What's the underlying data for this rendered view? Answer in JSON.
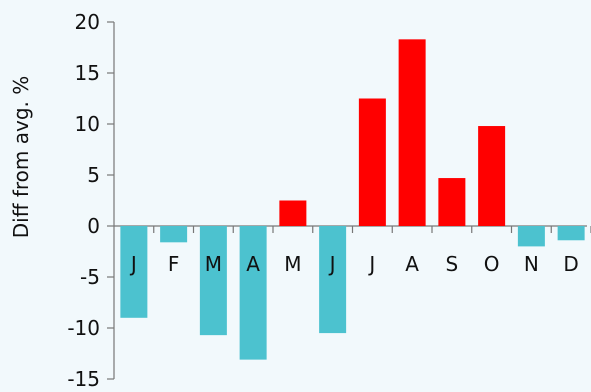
{
  "chart_data": {
    "type": "bar",
    "title": "",
    "xlabel": "",
    "ylabel": "Diff from avg. %",
    "categories": [
      "J",
      "F",
      "M",
      "A",
      "M",
      "J",
      "J",
      "A",
      "S",
      "O",
      "N",
      "D"
    ],
    "values": [
      -9.0,
      -1.6,
      -10.7,
      -13.1,
      2.5,
      -10.5,
      12.5,
      18.3,
      4.7,
      9.8,
      -2.0,
      -1.4
    ],
    "ylim": [
      -15,
      20
    ],
    "yticks": [
      "-15",
      "-10",
      "-5",
      "0",
      "5",
      "10",
      "15",
      "20"
    ],
    "grid": false,
    "legend": "none",
    "colors": {
      "negative": "#4cc2cf",
      "positive": "#ff0000",
      "axis": "#777777",
      "background": "#f2f9fc"
    }
  }
}
